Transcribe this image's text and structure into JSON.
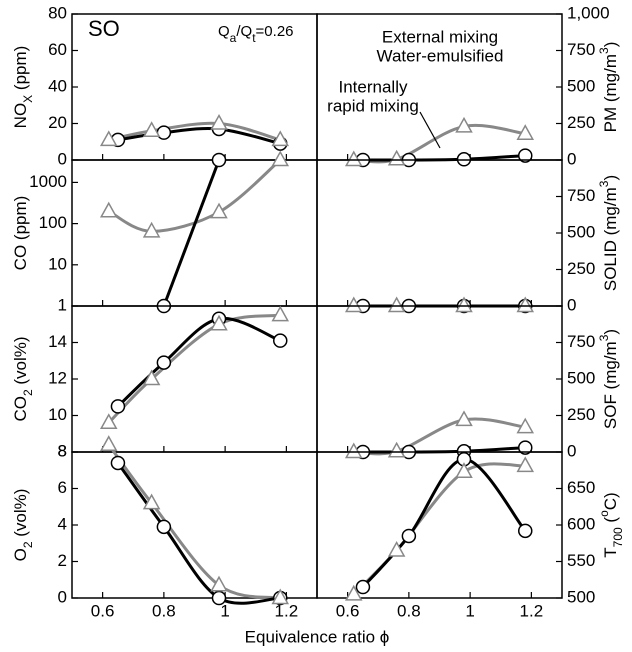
{
  "chart_data": [
    {
      "type": "line",
      "ylim": [
        0,
        80
      ],
      "yticks": [
        0,
        20,
        40,
        60,
        80
      ],
      "xlim": [
        0.5,
        1.3
      ],
      "xticks": [
        0.6,
        0.8,
        1.0,
        1.2
      ],
      "ylabel": [
        {
          "text": "NO"
        },
        {
          "text": "X",
          "sub": true
        },
        {
          "text": "  (ppm)"
        }
      ],
      "annotations": [
        [
          {
            "text": "SO"
          }
        ],
        [
          {
            "text": "Q"
          },
          {
            "text": "a",
            "sub": true
          },
          {
            "text": "/Q"
          },
          {
            "text": "t",
            "sub": true
          },
          {
            "text": "=0.26"
          }
        ]
      ],
      "series": [
        {
          "color": "#000000",
          "marker": "circle",
          "x": [
            0.65,
            0.8,
            0.98,
            1.18
          ],
          "values": [
            11,
            15,
            17,
            9
          ]
        },
        {
          "color": "#888888",
          "marker": "triangle",
          "x": [
            0.62,
            0.76,
            0.98,
            1.18
          ],
          "values": [
            11,
            16,
            20,
            11
          ]
        }
      ]
    },
    {
      "type": "line",
      "yscale": "log",
      "ylim": [
        1,
        3500
      ],
      "yticks": [
        1,
        10,
        100,
        1000
      ],
      "xlim": [
        0.5,
        1.3
      ],
      "xticks": [
        0.6,
        0.8,
        1.0,
        1.2
      ],
      "ylabel": [
        {
          "text": "CO  (ppm)"
        }
      ],
      "series": [
        {
          "color": "#000000",
          "marker": "circle",
          "x": [
            0.8,
            0.98
          ],
          "values": [
            1,
            3500
          ]
        },
        {
          "color": "#888888",
          "marker": "triangle",
          "x": [
            0.62,
            0.76,
            0.98,
            1.18
          ],
          "values": [
            200,
            65,
            190,
            3500
          ]
        }
      ]
    },
    {
      "type": "line",
      "ylim": [
        8,
        16
      ],
      "yticks": [
        8,
        10,
        12,
        14
      ],
      "xlim": [
        0.5,
        1.3
      ],
      "xticks": [
        0.6,
        0.8,
        1.0,
        1.2
      ],
      "ylabel": [
        {
          "text": "CO"
        },
        {
          "text": "2",
          "sub": true
        },
        {
          "text": "  (vol%)"
        }
      ],
      "series": [
        {
          "color": "#000000",
          "marker": "circle",
          "x": [
            0.65,
            0.8,
            0.98,
            1.18
          ],
          "values": [
            10.5,
            12.9,
            15.3,
            14.1
          ]
        },
        {
          "color": "#888888",
          "marker": "triangle",
          "x": [
            0.62,
            0.76,
            0.98,
            1.18
          ],
          "values": [
            9.6,
            12.0,
            15.0,
            15.5
          ]
        }
      ]
    },
    {
      "type": "line",
      "ylim": [
        0,
        8
      ],
      "yticks": [
        0,
        2,
        4,
        6,
        8
      ],
      "xlim": [
        0.5,
        1.3
      ],
      "xticks": [
        0.6,
        0.8,
        1.0,
        1.2
      ],
      "ylabel": [
        {
          "text": "O"
        },
        {
          "text": "2",
          "sub": true
        },
        {
          "text": "  (vol%)"
        }
      ],
      "xlabel": "Equivalence ratio ϕ",
      "series": [
        {
          "color": "#000000",
          "marker": "circle",
          "x": [
            0.65,
            0.8,
            0.98,
            1.18
          ],
          "values": [
            7.4,
            3.9,
            0,
            0
          ]
        },
        {
          "color": "#888888",
          "marker": "triangle",
          "x": [
            0.62,
            0.76,
            0.98,
            1.18
          ],
          "values": [
            8.4,
            5.2,
            0.7,
            0
          ]
        }
      ]
    },
    {
      "type": "line",
      "ylim": [
        0,
        1000
      ],
      "yticks": [
        0,
        250,
        500,
        750,
        {
          "value": 1000,
          "label": "1,000"
        }
      ],
      "xlim": [
        0.5,
        1.3
      ],
      "xticks": [
        0.6,
        0.8,
        1.0,
        1.2
      ],
      "ylabel": [
        {
          "text": "PM  (mg/m"
        },
        {
          "text": "3",
          "sup": true
        },
        {
          "text": ")"
        }
      ],
      "series": [
        {
          "name": [
            "Internally",
            "rapid mixing"
          ],
          "color": "#000000",
          "marker": "circle",
          "x": [
            0.65,
            0.8,
            0.98,
            1.18
          ],
          "values": [
            0,
            0,
            5,
            30
          ]
        },
        {
          "name": [
            "External mixing",
            "Water-emulsified"
          ],
          "color": "#888888",
          "marker": "triangle",
          "x": [
            0.62,
            0.76,
            0.98,
            1.18
          ],
          "values": [
            0,
            5,
            230,
            180
          ]
        }
      ]
    },
    {
      "type": "line",
      "ylim": [
        0,
        1000
      ],
      "yticks": [
        0,
        250,
        500,
        750
      ],
      "xlim": [
        0.5,
        1.3
      ],
      "xticks": [
        0.6,
        0.8,
        1.0,
        1.2
      ],
      "ylabel": [
        {
          "text": "SOLID  (mg/m"
        },
        {
          "text": "3",
          "sup": true
        },
        {
          "text": ")"
        }
      ],
      "series": [
        {
          "color": "#000000",
          "marker": "circle",
          "x": [
            0.65,
            0.8,
            0.98,
            1.18
          ],
          "values": [
            0,
            0,
            0,
            0
          ]
        },
        {
          "color": "#888888",
          "marker": "triangle",
          "x": [
            0.62,
            0.76,
            0.98,
            1.18
          ],
          "values": [
            0,
            0,
            0,
            0
          ]
        }
      ]
    },
    {
      "type": "line",
      "ylim": [
        0,
        1000
      ],
      "yticks": [
        0,
        250,
        500,
        750
      ],
      "xlim": [
        0.5,
        1.3
      ],
      "xticks": [
        0.6,
        0.8,
        1.0,
        1.2
      ],
      "ylabel": [
        {
          "text": "SOF  (mg/m"
        },
        {
          "text": "3",
          "sup": true
        },
        {
          "text": ")"
        }
      ],
      "series": [
        {
          "color": "#000000",
          "marker": "circle",
          "x": [
            0.65,
            0.8,
            0.98,
            1.18
          ],
          "values": [
            0,
            0,
            5,
            30
          ]
        },
        {
          "color": "#888888",
          "marker": "triangle",
          "x": [
            0.62,
            0.76,
            0.98,
            1.18
          ],
          "values": [
            0,
            5,
            220,
            170
          ]
        }
      ]
    },
    {
      "type": "line",
      "ylim": [
        500,
        700
      ],
      "yticks": [
        500,
        550,
        600,
        650
      ],
      "xlim": [
        0.5,
        1.3
      ],
      "xticks": [
        0.6,
        0.8,
        1.0,
        1.2
      ],
      "ylabel": [
        {
          "text": "T"
        },
        {
          "text": "700",
          "sub": true
        },
        {
          "text": "  ("
        },
        {
          "text": "o",
          "sup": true
        },
        {
          "text": "C)"
        }
      ],
      "series": [
        {
          "color": "#000000",
          "marker": "circle",
          "x": [
            0.65,
            0.8,
            0.98,
            1.18
          ],
          "values": [
            515,
            585,
            690,
            592
          ]
        },
        {
          "color": "#888888",
          "marker": "triangle",
          "x": [
            0.62,
            0.76,
            0.98,
            1.18
          ],
          "values": [
            505,
            565,
            673,
            681
          ]
        }
      ]
    }
  ]
}
